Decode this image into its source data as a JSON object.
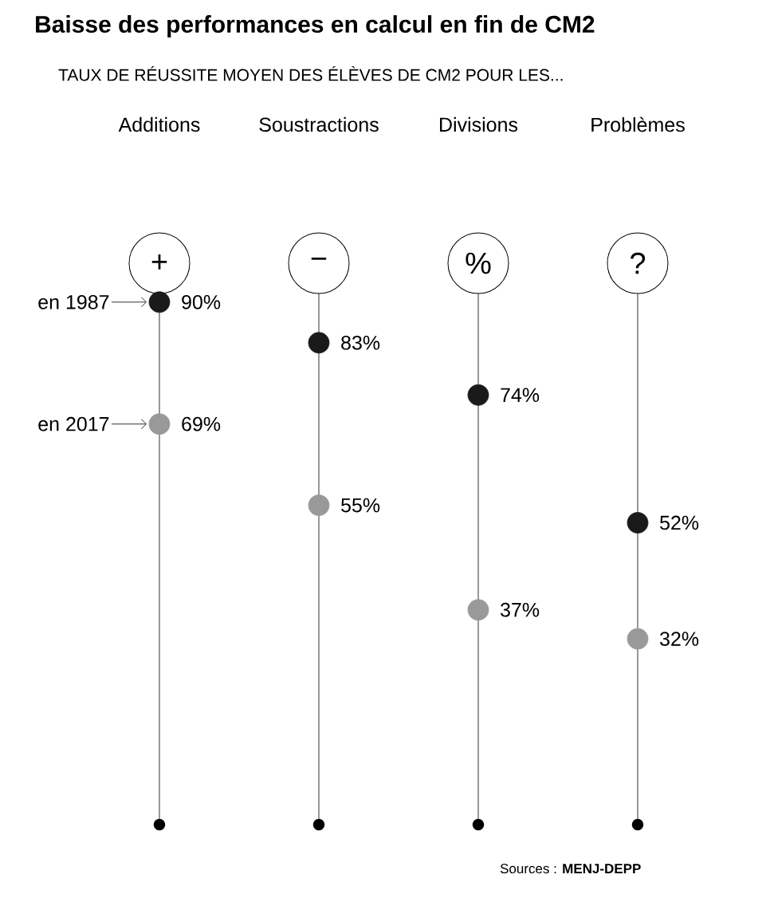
{
  "chart_data": {
    "type": "scatter",
    "title": "Baisse des performances en calcul en fin de CM2",
    "subtitle": "TAUX DE RÉUSSITE MOYEN DES ÉLÈVES DE CM2 POUR LES...",
    "categories": [
      "Additions",
      "Soustractions",
      "Divisions",
      "Problèmes"
    ],
    "series": [
      {
        "name": "en 1987",
        "color": "#1a1a1a",
        "values": [
          90,
          83,
          74,
          52
        ],
        "value_labels": [
          "90%",
          "83%",
          "74%",
          "52%"
        ]
      },
      {
        "name": "en 2017",
        "color": "#999999",
        "values": [
          69,
          55,
          37,
          32
        ],
        "value_labels": [
          "69%",
          "55%",
          "37%",
          "32%"
        ]
      }
    ],
    "grid": "x",
    "annotations": [
      "+",
      "−",
      "%",
      "?",
      "Sources : **MENJ-DEPP**"
    ]
  }
}
